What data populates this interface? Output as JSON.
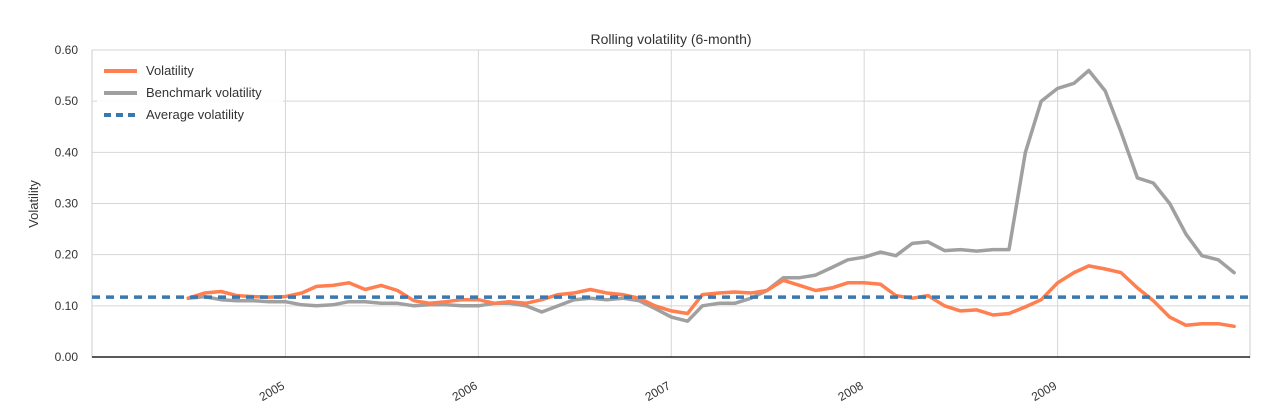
{
  "chart_data": {
    "type": "line",
    "title": "Rolling volatility (6-month)",
    "xlabel": "",
    "ylabel": "Volatility",
    "x_range": [
      "2004-01-01",
      "2009-12-31"
    ],
    "ylim": [
      0,
      0.6
    ],
    "y_ticks": [
      0.0,
      0.1,
      0.2,
      0.3,
      0.4,
      0.5,
      0.6
    ],
    "y_tick_labels": [
      "0.00",
      "0.10",
      "0.20",
      "0.30",
      "0.40",
      "0.50",
      "0.60"
    ],
    "x_ticks": [
      "2005-01-01",
      "2006-01-01",
      "2007-01-01",
      "2008-01-01",
      "2009-01-01"
    ],
    "x_tick_labels": [
      "2005",
      "2006",
      "2007",
      "2008",
      "2009"
    ],
    "grid": true,
    "legend_position": "top-left",
    "legend": [
      {
        "label": "Volatility",
        "color": "#ff7f50",
        "style": "solid"
      },
      {
        "label": "Benchmark volatility",
        "color": "#a0a0a0",
        "style": "solid"
      },
      {
        "label": "Average volatility",
        "color": "#3a78b0",
        "style": "dashed"
      }
    ],
    "series": [
      {
        "name": "Volatility",
        "color": "#ff7f50",
        "points": [
          [
            "2004-07-01",
            0.115
          ],
          [
            "2004-08-01",
            0.125
          ],
          [
            "2004-09-01",
            0.128
          ],
          [
            "2004-10-01",
            0.12
          ],
          [
            "2004-11-01",
            0.118
          ],
          [
            "2004-12-01",
            0.117
          ],
          [
            "2005-01-01",
            0.118
          ],
          [
            "2005-02-01",
            0.125
          ],
          [
            "2005-03-01",
            0.138
          ],
          [
            "2005-04-01",
            0.14
          ],
          [
            "2005-05-01",
            0.145
          ],
          [
            "2005-06-01",
            0.132
          ],
          [
            "2005-07-01",
            0.14
          ],
          [
            "2005-08-01",
            0.13
          ],
          [
            "2005-09-01",
            0.11
          ],
          [
            "2005-10-01",
            0.105
          ],
          [
            "2005-11-01",
            0.108
          ],
          [
            "2005-12-01",
            0.112
          ],
          [
            "2006-01-01",
            0.112
          ],
          [
            "2006-02-01",
            0.105
          ],
          [
            "2006-03-01",
            0.108
          ],
          [
            "2006-04-01",
            0.105
          ],
          [
            "2006-05-01",
            0.112
          ],
          [
            "2006-06-01",
            0.122
          ],
          [
            "2006-07-01",
            0.125
          ],
          [
            "2006-08-01",
            0.132
          ],
          [
            "2006-09-01",
            0.125
          ],
          [
            "2006-10-01",
            0.122
          ],
          [
            "2006-11-01",
            0.115
          ],
          [
            "2006-12-01",
            0.1
          ],
          [
            "2007-01-01",
            0.09
          ],
          [
            "2007-02-01",
            0.085
          ],
          [
            "2007-03-01",
            0.122
          ],
          [
            "2007-04-01",
            0.125
          ],
          [
            "2007-05-01",
            0.127
          ],
          [
            "2007-06-01",
            0.125
          ],
          [
            "2007-07-01",
            0.13
          ],
          [
            "2007-08-01",
            0.15
          ],
          [
            "2007-09-01",
            0.14
          ],
          [
            "2007-10-01",
            0.13
          ],
          [
            "2007-11-01",
            0.135
          ],
          [
            "2007-12-01",
            0.145
          ],
          [
            "2008-01-01",
            0.145
          ],
          [
            "2008-02-01",
            0.142
          ],
          [
            "2008-03-01",
            0.12
          ],
          [
            "2008-04-01",
            0.115
          ],
          [
            "2008-05-01",
            0.12
          ],
          [
            "2008-06-01",
            0.1
          ],
          [
            "2008-07-01",
            0.09
          ],
          [
            "2008-08-01",
            0.092
          ],
          [
            "2008-09-01",
            0.082
          ],
          [
            "2008-10-01",
            0.085
          ],
          [
            "2008-11-01",
            0.098
          ],
          [
            "2008-12-01",
            0.112
          ],
          [
            "2009-01-01",
            0.145
          ],
          [
            "2009-02-01",
            0.165
          ],
          [
            "2009-03-01",
            0.178
          ],
          [
            "2009-04-01",
            0.172
          ],
          [
            "2009-05-01",
            0.165
          ],
          [
            "2009-06-01",
            0.135
          ],
          [
            "2009-07-01",
            0.11
          ],
          [
            "2009-08-01",
            0.078
          ],
          [
            "2009-09-01",
            0.062
          ],
          [
            "2009-10-01",
            0.065
          ],
          [
            "2009-11-01",
            0.065
          ],
          [
            "2009-12-01",
            0.06
          ]
        ]
      },
      {
        "name": "Benchmark volatility",
        "color": "#a0a0a0",
        "points": [
          [
            "2004-07-01",
            0.115
          ],
          [
            "2004-08-01",
            0.118
          ],
          [
            "2004-09-01",
            0.112
          ],
          [
            "2004-10-01",
            0.11
          ],
          [
            "2004-11-01",
            0.11
          ],
          [
            "2004-12-01",
            0.108
          ],
          [
            "2005-01-01",
            0.108
          ],
          [
            "2005-02-01",
            0.102
          ],
          [
            "2005-03-01",
            0.1
          ],
          [
            "2005-04-01",
            0.102
          ],
          [
            "2005-05-01",
            0.108
          ],
          [
            "2005-06-01",
            0.108
          ],
          [
            "2005-07-01",
            0.105
          ],
          [
            "2005-08-01",
            0.105
          ],
          [
            "2005-09-01",
            0.1
          ],
          [
            "2005-10-01",
            0.102
          ],
          [
            "2005-11-01",
            0.102
          ],
          [
            "2005-12-01",
            0.1
          ],
          [
            "2006-01-01",
            0.1
          ],
          [
            "2006-02-01",
            0.105
          ],
          [
            "2006-03-01",
            0.105
          ],
          [
            "2006-04-01",
            0.1
          ],
          [
            "2006-05-01",
            0.088
          ],
          [
            "2006-06-01",
            0.1
          ],
          [
            "2006-07-01",
            0.112
          ],
          [
            "2006-08-01",
            0.115
          ],
          [
            "2006-09-01",
            0.112
          ],
          [
            "2006-10-01",
            0.115
          ],
          [
            "2006-11-01",
            0.11
          ],
          [
            "2006-12-01",
            0.095
          ],
          [
            "2007-01-01",
            0.078
          ],
          [
            "2007-02-01",
            0.07
          ],
          [
            "2007-03-01",
            0.1
          ],
          [
            "2007-04-01",
            0.105
          ],
          [
            "2007-05-01",
            0.105
          ],
          [
            "2007-06-01",
            0.115
          ],
          [
            "2007-07-01",
            0.13
          ],
          [
            "2007-08-01",
            0.155
          ],
          [
            "2007-09-01",
            0.155
          ],
          [
            "2007-10-01",
            0.16
          ],
          [
            "2007-11-01",
            0.175
          ],
          [
            "2007-12-01",
            0.19
          ],
          [
            "2008-01-01",
            0.195
          ],
          [
            "2008-02-01",
            0.205
          ],
          [
            "2008-03-01",
            0.198
          ],
          [
            "2008-04-01",
            0.222
          ],
          [
            "2008-05-01",
            0.225
          ],
          [
            "2008-06-01",
            0.208
          ],
          [
            "2008-07-01",
            0.21
          ],
          [
            "2008-08-01",
            0.207
          ],
          [
            "2008-09-01",
            0.21
          ],
          [
            "2008-10-01",
            0.21
          ],
          [
            "2008-11-01",
            0.4
          ],
          [
            "2008-12-01",
            0.5
          ],
          [
            "2009-01-01",
            0.525
          ],
          [
            "2009-02-01",
            0.535
          ],
          [
            "2009-03-01",
            0.56
          ],
          [
            "2009-04-01",
            0.52
          ],
          [
            "2009-05-01",
            0.44
          ],
          [
            "2009-06-01",
            0.35
          ],
          [
            "2009-07-01",
            0.34
          ],
          [
            "2009-08-01",
            0.3
          ],
          [
            "2009-09-01",
            0.24
          ],
          [
            "2009-10-01",
            0.198
          ],
          [
            "2009-11-01",
            0.19
          ],
          [
            "2009-12-01",
            0.165
          ]
        ]
      },
      {
        "name": "Average volatility",
        "color": "#3a78b0",
        "style": "dashed",
        "points": [
          [
            "2004-01-01",
            0.117
          ],
          [
            "2009-12-31",
            0.117
          ]
        ]
      }
    ]
  }
}
